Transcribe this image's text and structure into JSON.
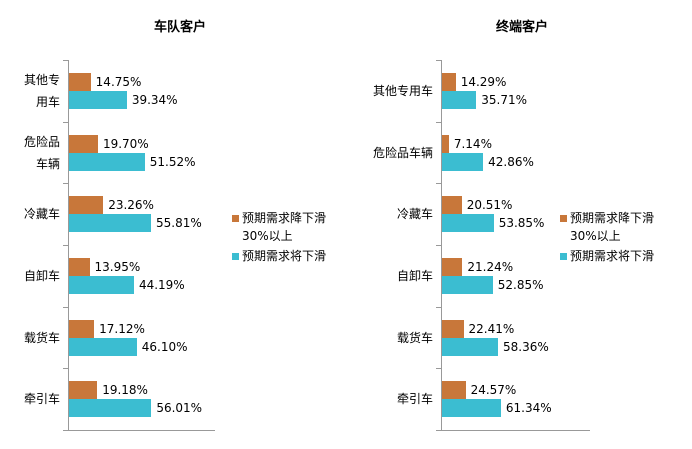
{
  "chart_data": [
    {
      "type": "bar",
      "orientation": "horizontal",
      "title": "车队客户",
      "categories": [
        "其他专用车",
        "危险品车辆",
        "冷藏车",
        "自卸车",
        "载货车",
        "牵引车"
      ],
      "series": [
        {
          "name": "预期需求降下滑30%以上",
          "color": "#c8773a",
          "values": [
            14.75,
            19.7,
            23.26,
            13.95,
            17.12,
            19.18
          ],
          "value_labels": [
            "14.75%",
            "19.70%",
            "23.26%",
            "13.95%",
            "17.12%",
            "19.18%"
          ]
        },
        {
          "name": "预期需求将下滑",
          "color": "#3bbdd1",
          "values": [
            39.34,
            51.52,
            55.81,
            44.19,
            46.1,
            56.01
          ],
          "value_labels": [
            "39.34%",
            "51.52%",
            "55.81%",
            "44.19%",
            "46.10%",
            "56.01%"
          ]
        }
      ]
    },
    {
      "type": "bar",
      "orientation": "horizontal",
      "title": "终端客户",
      "categories": [
        "其他专用车",
        "危险品车辆",
        "冷藏车",
        "自卸车",
        "载货车",
        "牵引车"
      ],
      "series": [
        {
          "name": "预期需求降下滑30%以上",
          "color": "#c8773a",
          "values": [
            14.29,
            7.14,
            20.51,
            21.24,
            22.41,
            24.57
          ],
          "value_labels": [
            "14.29%",
            "7.14%",
            "20.51%",
            "21.24%",
            "22.41%",
            "24.57%"
          ]
        },
        {
          "name": "预期需求将下滑",
          "color": "#3bbdd1",
          "values": [
            35.71,
            42.86,
            53.85,
            52.85,
            58.36,
            61.34
          ],
          "value_labels": [
            "35.71%",
            "42.86%",
            "53.85%",
            "52.85%",
            "58.36%",
            "61.34%"
          ]
        }
      ]
    }
  ]
}
